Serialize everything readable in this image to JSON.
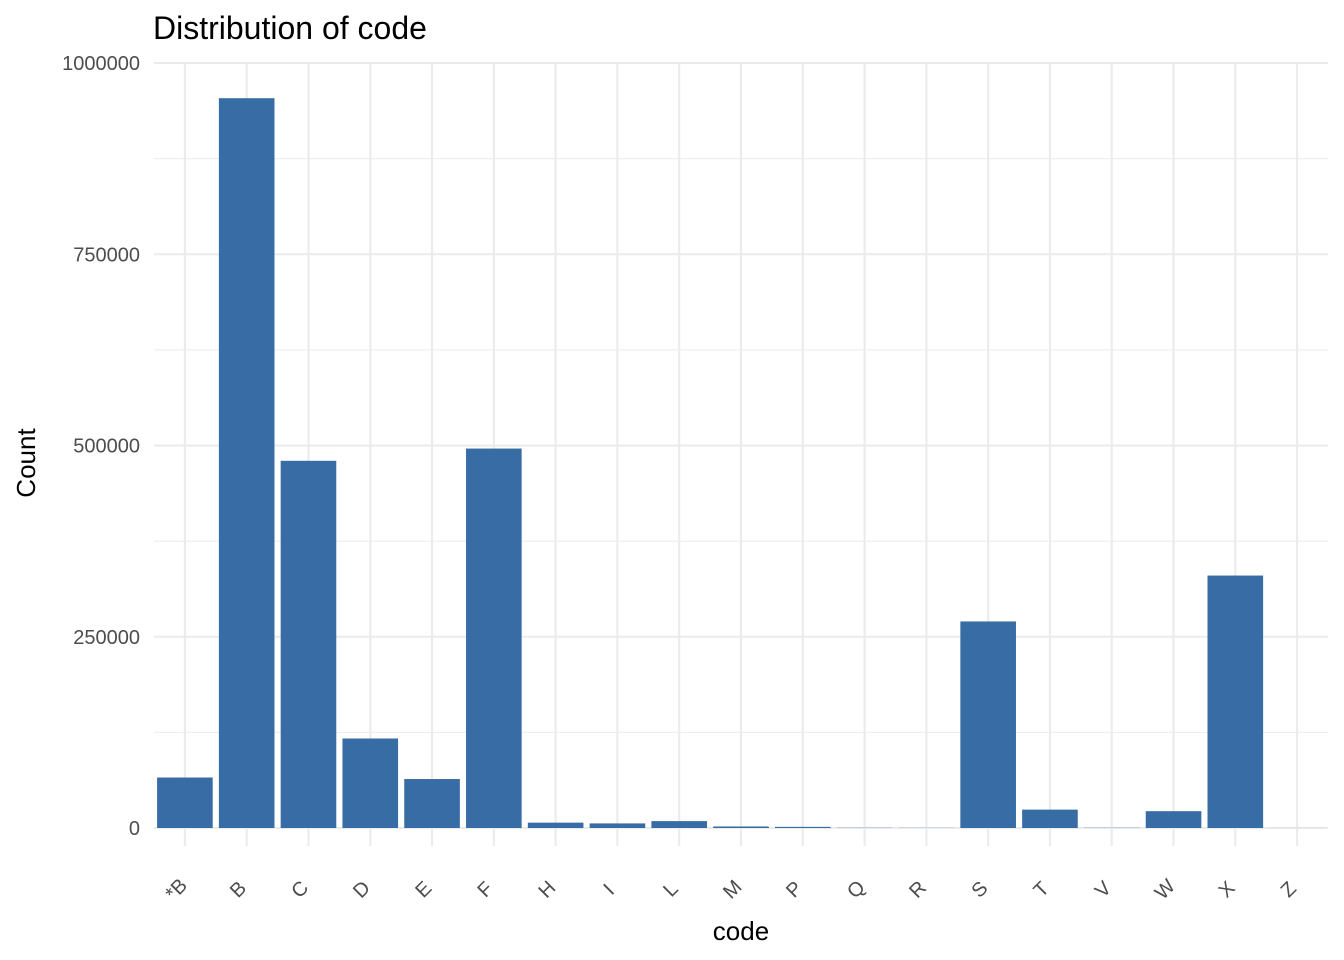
{
  "chart_data": {
    "type": "bar",
    "title": "Distribution of code",
    "xlabel": "code",
    "ylabel": "Count",
    "categories": [
      "*B",
      "B",
      "C",
      "D",
      "E",
      "F",
      "H",
      "I",
      "L",
      "M",
      "P",
      "Q",
      "R",
      "S",
      "T",
      "V",
      "W",
      "X",
      "Z"
    ],
    "values": [
      66000,
      954000,
      480000,
      117000,
      64000,
      496000,
      7000,
      6000,
      9000,
      2000,
      1500,
      300,
      200,
      270000,
      24000,
      300,
      22000,
      330000,
      100
    ],
    "ylim": [
      0,
      1000000
    ],
    "yticks": [
      0,
      250000,
      500000,
      750000,
      1000000
    ],
    "ytick_labels": [
      "0",
      "250000",
      "500000",
      "750000",
      "1000000"
    ],
    "grid": true,
    "legend": "none",
    "bar_color": "#386CA4"
  }
}
